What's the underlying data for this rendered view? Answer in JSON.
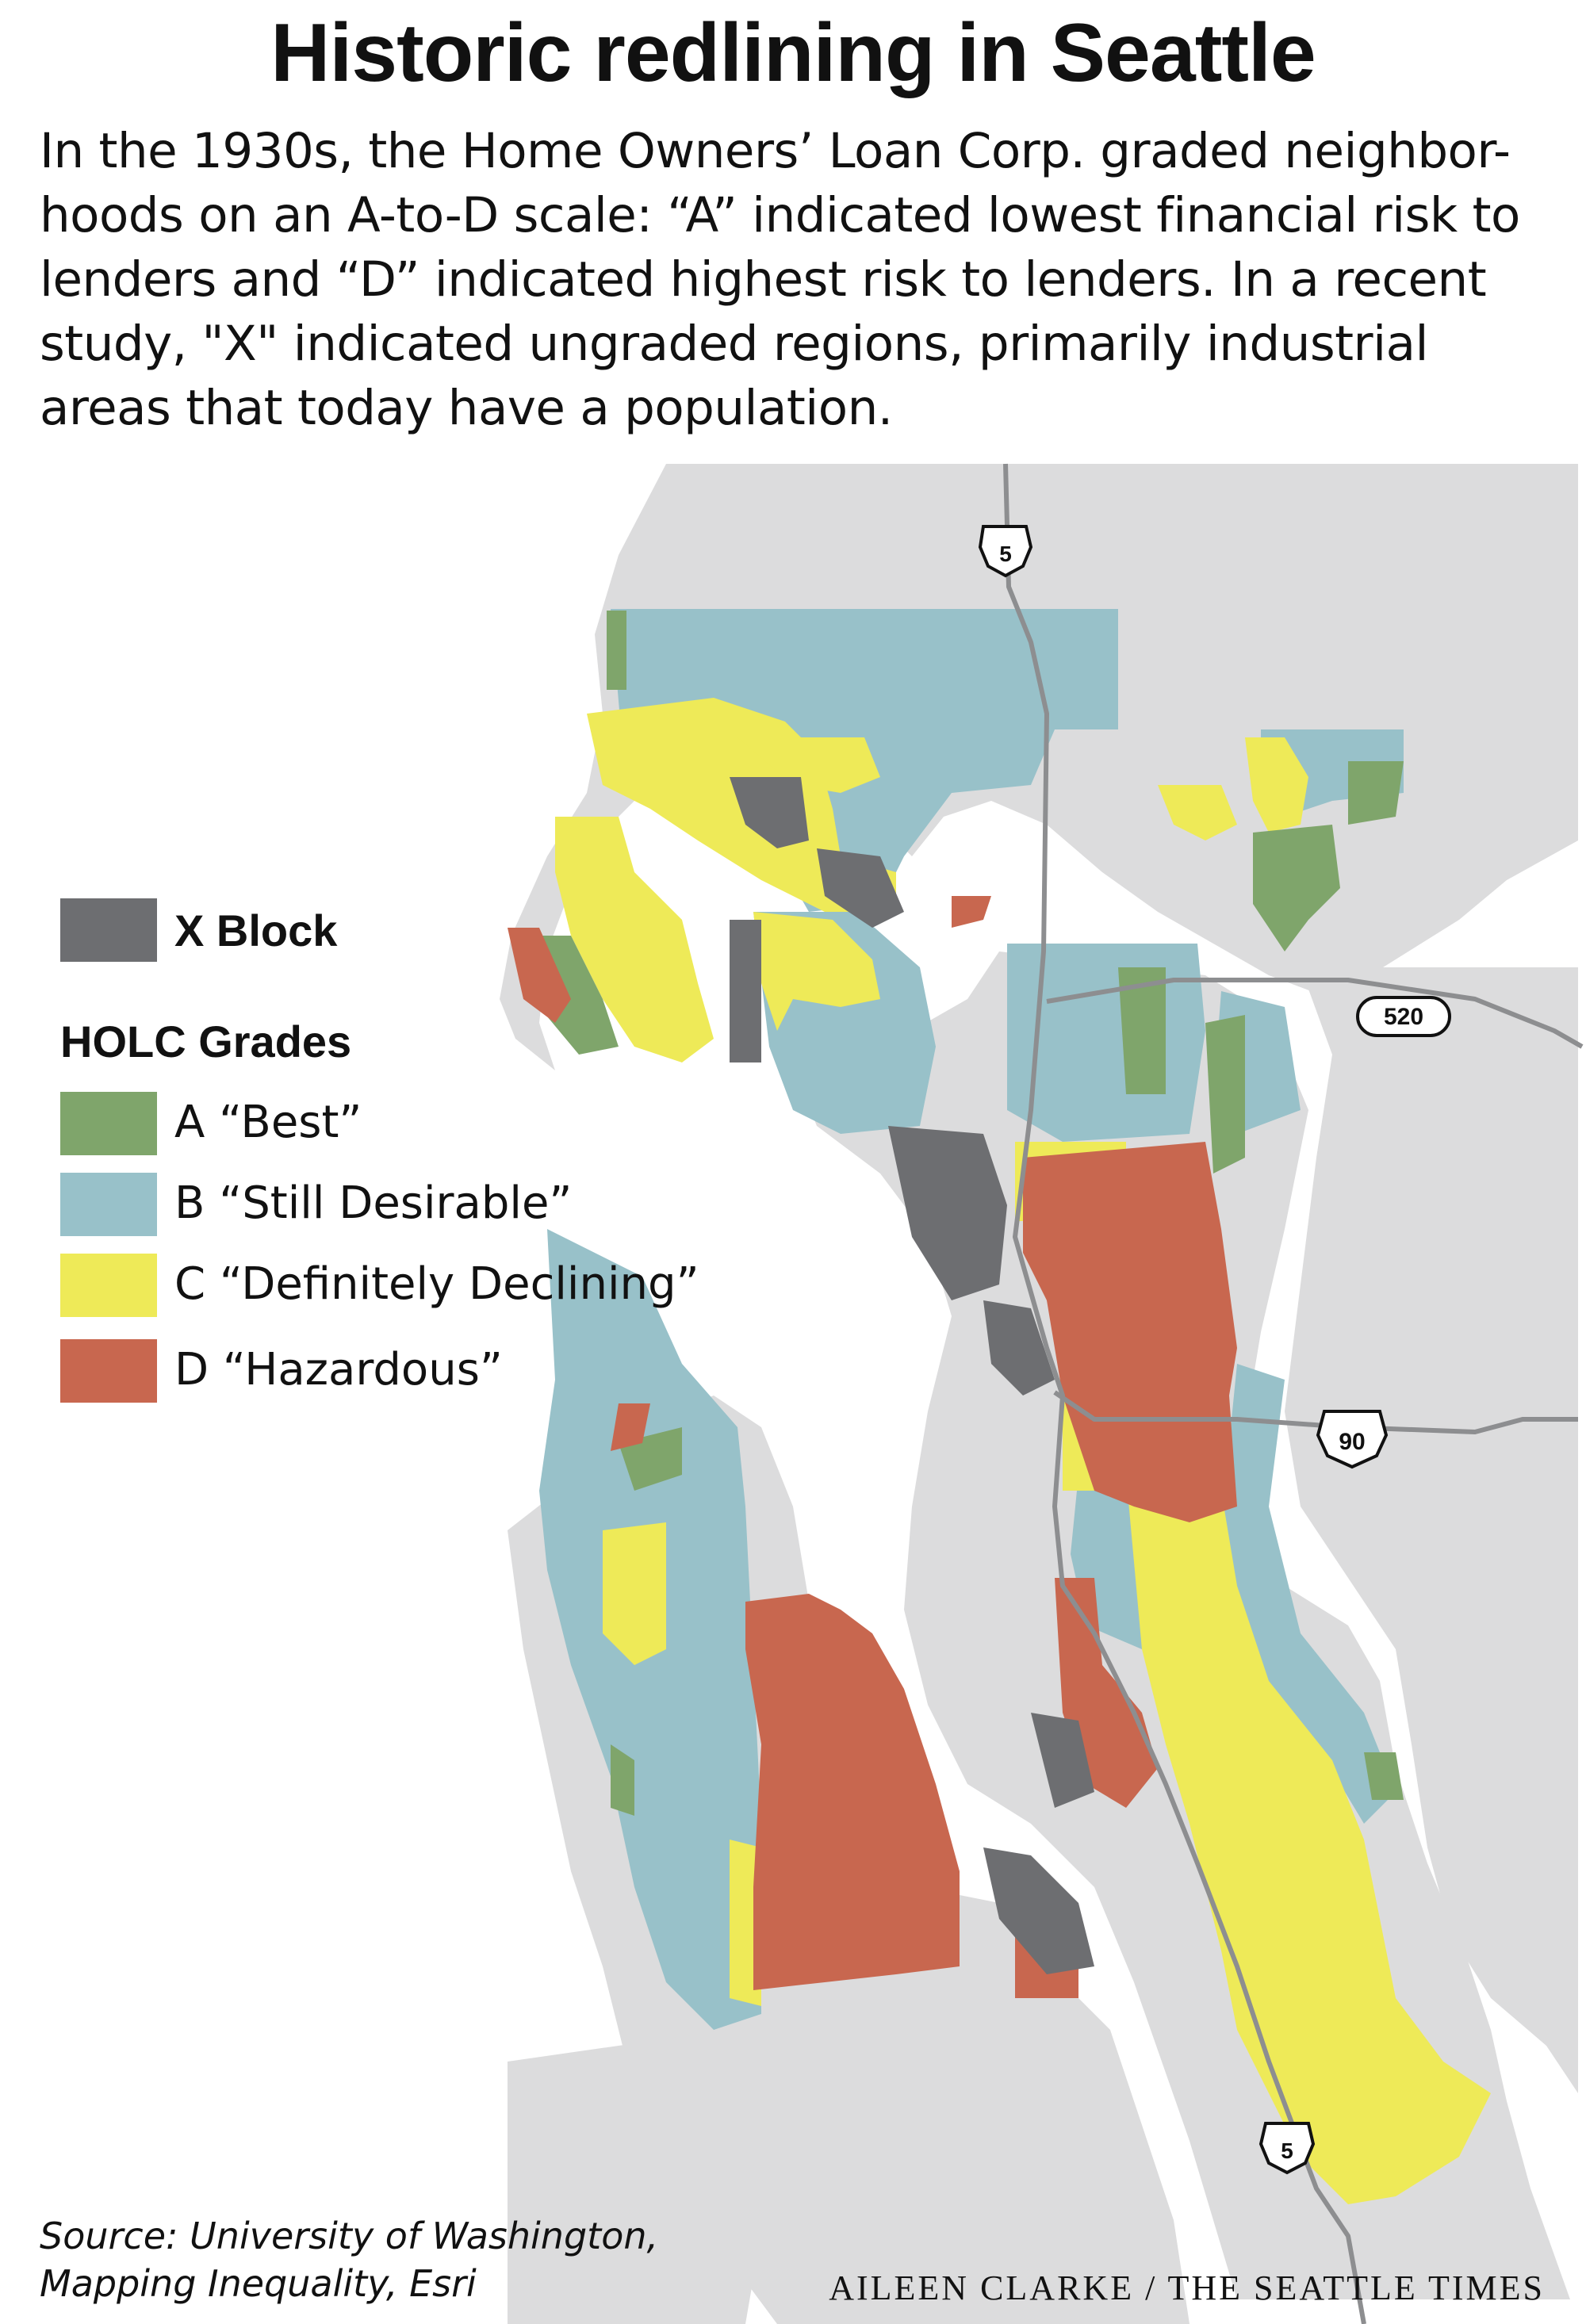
{
  "title": "Historic redlining in Seattle",
  "intro": [
    "In the 1930s, the Home Owners’ Loan Corp. graded neighbor-",
    "hoods on an A-to-D scale: “A” indicated lowest financial risk to",
    "lenders and “D” indicated highest risk to lenders. In a recent",
    "study, \"X\" indicated ungraded regions, primarily industrial",
    "areas that today have a population."
  ],
  "legend": {
    "x_block": {
      "label": "X Block",
      "color": "#6d6e71"
    },
    "heading": "HOLC Grades",
    "grades": [
      {
        "label": "A “Best”",
        "color": "#7fa56b"
      },
      {
        "label": "B “Still Desirable”",
        "color": "#98c1c9"
      },
      {
        "label": "C “Definitely Declining”",
        "color": "#eeea58"
      },
      {
        "label": "D “Hazardous”",
        "color": "#c8674f"
      }
    ]
  },
  "highways": {
    "i5_north": "5",
    "sr520": "520",
    "i90": "90",
    "i5_south": "5"
  },
  "colors": {
    "land": "#dcdcdd",
    "water": "#ffffff",
    "road": "#8d8e90"
  },
  "source": [
    "Source: University of Washington,",
    "Mapping Inequality, Esri"
  ],
  "credit": "AILEEN CLARKE / THE SEATTLE TIMES"
}
